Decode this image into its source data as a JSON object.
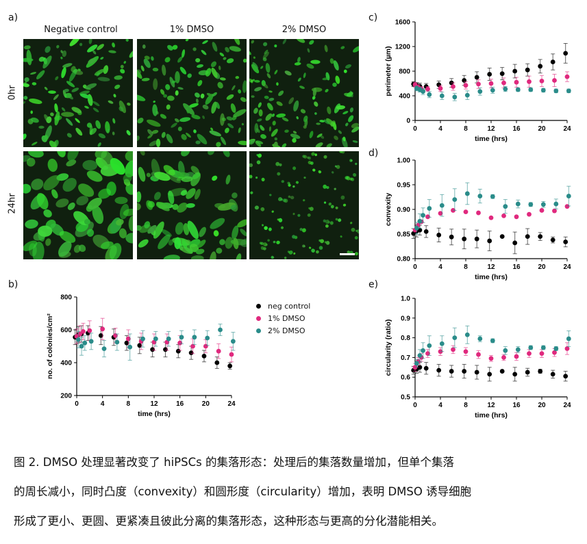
{
  "panel_a": {
    "letter": "a)",
    "columns": [
      "Negative control",
      "1% DMSO",
      "2% DMSO"
    ],
    "rows": [
      "0hr",
      "24hr"
    ]
  },
  "legend": [
    {
      "label": "neg control",
      "color": "#000000"
    },
    {
      "label": "1% DMSO",
      "color": "#e0297e"
    },
    {
      "label": "2% DMSO",
      "color": "#2a8c8a"
    }
  ],
  "chart_data": [
    {
      "id": "b",
      "letter": "b)",
      "type": "scatter",
      "xlabel": "time (hrs)",
      "ylabel": "no. of colonies/cm²",
      "xlim": [
        0,
        24
      ],
      "ylim": [
        200,
        800
      ],
      "xticks": [
        0,
        4,
        8,
        12,
        16,
        20,
        24
      ],
      "yticks": [
        200,
        400,
        600,
        800
      ],
      "x": [
        0,
        0.5,
        1,
        2,
        4,
        6,
        8,
        10,
        12,
        14,
        16,
        18,
        20,
        22,
        24
      ],
      "series": [
        {
          "name": "neg control",
          "color": "#000000",
          "values": [
            555,
            570,
            575,
            580,
            565,
            555,
            520,
            505,
            480,
            480,
            470,
            460,
            440,
            400,
            380
          ],
          "errors": [
            45,
            50,
            50,
            45,
            55,
            50,
            45,
            50,
            45,
            45,
            40,
            40,
            35,
            35,
            20
          ]
        },
        {
          "name": "1% DMSO",
          "color": "#e0297e",
          "values": [
            560,
            575,
            590,
            595,
            605,
            565,
            545,
            530,
            525,
            525,
            520,
            500,
            500,
            470,
            450
          ],
          "errors": [
            45,
            50,
            50,
            60,
            65,
            45,
            55,
            50,
            50,
            50,
            45,
            45,
            40,
            45,
            45
          ]
        },
        {
          "name": "2% DMSO",
          "color": "#2a8c8a",
          "values": [
            540,
            500,
            520,
            530,
            485,
            525,
            495,
            545,
            545,
            545,
            555,
            555,
            550,
            600,
            530
          ],
          "errors": [
            50,
            55,
            45,
            50,
            50,
            50,
            80,
            50,
            45,
            45,
            40,
            45,
            45,
            35,
            55
          ]
        }
      ]
    },
    {
      "id": "c",
      "letter": "c)",
      "type": "scatter",
      "xlabel": "time (hrs)",
      "ylabel": "perimeter (µm)",
      "xlim": [
        0,
        24
      ],
      "ylim": [
        0,
        1600
      ],
      "xticks": [
        0,
        4,
        8,
        12,
        16,
        20,
        24
      ],
      "yticks": [
        0,
        400,
        800,
        1200,
        1600
      ],
      "x": [
        0,
        0.5,
        1,
        2,
        4,
        6,
        8,
        10,
        12,
        14,
        16,
        18,
        20,
        22,
        24
      ],
      "series": [
        {
          "name": "neg control",
          "color": "#000000",
          "values": [
            590,
            570,
            555,
            550,
            580,
            610,
            650,
            700,
            750,
            760,
            800,
            820,
            880,
            950,
            1090
          ],
          "errors": [
            40,
            45,
            50,
            50,
            60,
            70,
            80,
            90,
            100,
            100,
            110,
            100,
            110,
            130,
            160
          ]
        },
        {
          "name": "1% DMSO",
          "color": "#e0297e",
          "values": [
            580,
            540,
            510,
            510,
            520,
            550,
            570,
            590,
            600,
            610,
            620,
            630,
            640,
            650,
            710
          ],
          "errors": [
            40,
            40,
            40,
            40,
            50,
            60,
            60,
            70,
            70,
            80,
            80,
            90,
            90,
            100,
            80
          ]
        },
        {
          "name": "2% DMSO",
          "color": "#2a8c8a",
          "values": [
            520,
            500,
            470,
            420,
            400,
            380,
            410,
            470,
            490,
            510,
            500,
            500,
            490,
            480,
            480
          ],
          "errors": [
            40,
            40,
            50,
            50,
            60,
            60,
            70,
            60,
            50,
            40,
            30,
            30,
            30,
            30,
            30
          ]
        }
      ]
    },
    {
      "id": "d",
      "letter": "d)",
      "type": "scatter",
      "xlabel": "time (hrs)",
      "ylabel": "convexity",
      "xlim": [
        0,
        24
      ],
      "ylim": [
        0.8,
        1.0
      ],
      "xticks": [
        0,
        4,
        8,
        12,
        16,
        20,
        24
      ],
      "yticks": [
        "0.80",
        "0.85",
        "0.90",
        "0.95",
        "1.00"
      ],
      "x": [
        0,
        0.5,
        1,
        2,
        4,
        6,
        8,
        10,
        12,
        14,
        16,
        18,
        20,
        22,
        24
      ],
      "series": [
        {
          "name": "neg control",
          "color": "#000000",
          "values": [
            0.851,
            0.856,
            0.858,
            0.855,
            0.848,
            0.844,
            0.84,
            0.84,
            0.836,
            0.845,
            0.832,
            0.845,
            0.845,
            0.838,
            0.834
          ],
          "errors": [
            0.01,
            0.012,
            0.01,
            0.012,
            0.014,
            0.016,
            0.02,
            0.018,
            0.02,
            0.0,
            0.022,
            0.016,
            0.008,
            0.006,
            0.01
          ]
        },
        {
          "name": "1% DMSO",
          "color": "#e0297e",
          "values": [
            0.858,
            0.868,
            0.875,
            0.885,
            0.892,
            0.898,
            0.895,
            0.893,
            0.883,
            0.887,
            0.885,
            0.89,
            0.898,
            0.897,
            0.906
          ]
        },
        {
          "name": "2% DMSO",
          "color": "#2a8c8a",
          "values": [
            0.862,
            0.876,
            0.888,
            0.902,
            0.908,
            0.92,
            0.932,
            0.927,
            0.926,
            0.906,
            0.911,
            0.91,
            0.91,
            0.911,
            0.927
          ],
          "errors": [
            0.012,
            0.015,
            0.015,
            0.018,
            0.022,
            0.022,
            0.022,
            0.014,
            0.004,
            0.014,
            0.008,
            0.004,
            0.006,
            0.01,
            0.02
          ]
        }
      ]
    },
    {
      "id": "e",
      "letter": "e)",
      "type": "scatter",
      "xlabel": "time (hrs)",
      "ylabel": "circularity (ratio)",
      "xlim": [
        0,
        24
      ],
      "ylim": [
        0.5,
        1.0
      ],
      "xticks": [
        0,
        4,
        8,
        12,
        16,
        20,
        24
      ],
      "yticks": [
        "0.5",
        "0.6",
        "0.7",
        "0.8",
        "0.9",
        "1.0"
      ],
      "x": [
        0,
        0.5,
        1,
        2,
        4,
        6,
        8,
        10,
        12,
        14,
        16,
        18,
        20,
        22,
        24
      ],
      "series": [
        {
          "name": "neg control",
          "color": "#000000",
          "values": [
            0.635,
            0.64,
            0.65,
            0.645,
            0.635,
            0.63,
            0.63,
            0.625,
            0.615,
            0.63,
            0.615,
            0.625,
            0.63,
            0.615,
            0.605
          ],
          "errors": [
            0.02,
            0.02,
            0.025,
            0.03,
            0.03,
            0.03,
            0.035,
            0.035,
            0.035,
            0.0,
            0.035,
            0.02,
            0.01,
            0.02,
            0.025
          ]
        },
        {
          "name": "1% DMSO",
          "color": "#e0297e",
          "values": [
            0.65,
            0.68,
            0.7,
            0.72,
            0.73,
            0.74,
            0.73,
            0.715,
            0.695,
            0.7,
            0.705,
            0.72,
            0.72,
            0.725,
            0.745
          ],
          "errors": [
            0.02,
            0.02,
            0.02,
            0.02,
            0.02,
            0.02,
            0.02,
            0.02,
            0.015,
            0.015,
            0.02,
            0.02,
            0.02,
            0.02,
            0.03
          ]
        },
        {
          "name": "2% DMSO",
          "color": "#2a8c8a",
          "values": [
            0.67,
            0.71,
            0.735,
            0.76,
            0.77,
            0.8,
            0.815,
            0.795,
            0.785,
            0.735,
            0.74,
            0.75,
            0.75,
            0.745,
            0.795
          ],
          "errors": [
            0.02,
            0.03,
            0.04,
            0.05,
            0.04,
            0.05,
            0.045,
            0.015,
            0.01,
            0.02,
            0.015,
            0.01,
            0.01,
            0.01,
            0.04
          ]
        }
      ]
    }
  ],
  "caption": [
    "图 2. DMSO 处理显著改变了 hiPSCs 的集落形态：处理后的集落数量增加，但单个集落",
    "的周长减小，同时凸度（convexity）和圆形度（circularity）增加，表明 DMSO 诱导细胞",
    "形成了更小、更圆、更紧凑且彼此分离的集落形态，这种形态与更高的分化潜能相关。"
  ]
}
